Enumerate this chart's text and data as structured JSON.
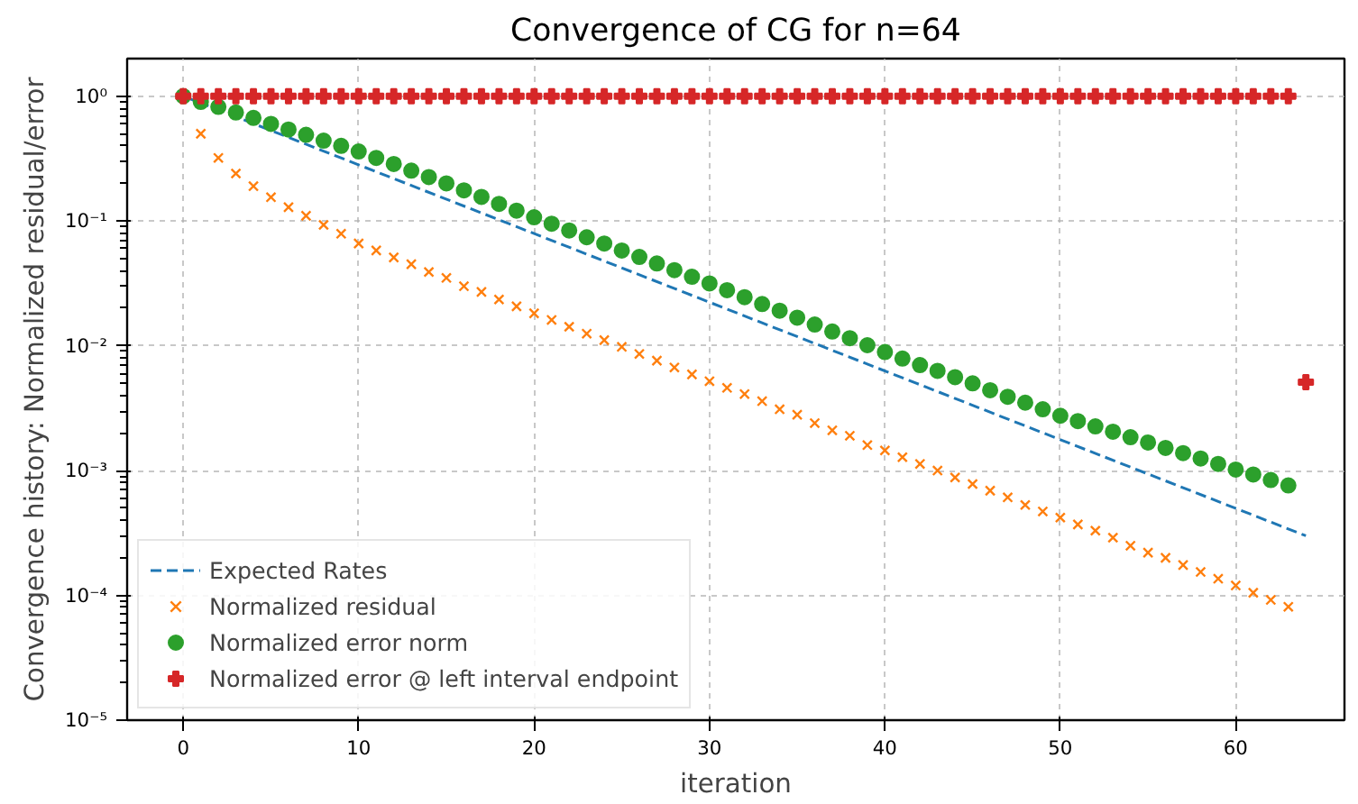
{
  "chart_data": {
    "type": "scatter",
    "title": "Convergence of CG for n=64",
    "xlabel": "iteration",
    "ylabel": "Convergence history: Normalized residual/error",
    "log": "y",
    "grid": true,
    "legend": "bottom left",
    "xlim": [
      -3.2,
      66.2
    ],
    "xticks": [
      0,
      10,
      20,
      30,
      40,
      50,
      60
    ],
    "ylim": [
      1e-05,
      2
    ],
    "yticks": [
      {
        "value": 1e-05,
        "label": "10⁻⁵"
      },
      {
        "value": 0.0001,
        "label": "10⁻⁴"
      },
      {
        "value": 0.001,
        "label": "10⁻³"
      },
      {
        "value": 0.01,
        "label": "10⁻²"
      },
      {
        "value": 0.1,
        "label": "10⁻¹"
      },
      {
        "value": 1,
        "label": "10⁰"
      }
    ],
    "series": [
      {
        "name": "Expected Rates",
        "type": "line",
        "line_style": "dashed",
        "color": "#1f77b4",
        "x": [
          0,
          64
        ],
        "values": [
          1,
          0.0003
        ]
      },
      {
        "name": "Normalized residual",
        "marker": "x",
        "color": "#ff7f0e",
        "x": [
          1,
          2,
          3,
          4,
          5,
          6,
          7,
          8,
          9,
          10,
          11,
          12,
          13,
          14,
          15,
          16,
          17,
          18,
          19,
          20,
          21,
          22,
          23,
          24,
          25,
          26,
          27,
          28,
          29,
          30,
          31,
          32,
          33,
          34,
          35,
          36,
          37,
          38,
          39,
          40,
          41,
          42,
          43,
          44,
          45,
          46,
          47,
          48,
          49,
          50,
          51,
          52,
          53,
          54,
          55,
          56,
          57,
          58,
          59,
          60,
          61,
          62,
          63
        ],
        "values": [
          0.5,
          0.32,
          0.24,
          0.19,
          0.155,
          0.129,
          0.11,
          0.093,
          0.079,
          0.066,
          0.058,
          0.051,
          0.045,
          0.039,
          0.035,
          0.03,
          0.027,
          0.0235,
          0.0207,
          0.0182,
          0.0161,
          0.0142,
          0.0125,
          0.0111,
          0.0098,
          0.0086,
          0.0076,
          0.0067,
          0.0059,
          0.0052,
          0.0046,
          0.0041,
          0.0036,
          0.0031,
          0.0028,
          0.0024,
          0.0021,
          0.0019,
          0.0016,
          0.00145,
          0.00128,
          0.00113,
          0.001,
          0.00088,
          0.00078,
          0.00069,
          0.00061,
          0.00053,
          0.00047,
          0.00042,
          0.00037,
          0.00033,
          0.00029,
          0.00025,
          0.00022,
          0.0002,
          0.000175,
          0.000154,
          0.000136,
          0.00012,
          0.000105,
          9.2e-05,
          8.1e-05
        ]
      },
      {
        "name": "Normalized error norm",
        "marker": "circle",
        "color": "#2ca02c",
        "x": [
          0,
          1,
          2,
          3,
          4,
          5,
          6,
          7,
          8,
          9,
          10,
          11,
          12,
          13,
          14,
          15,
          16,
          17,
          18,
          19,
          20,
          21,
          22,
          23,
          24,
          25,
          26,
          27,
          28,
          29,
          30,
          31,
          32,
          33,
          34,
          35,
          36,
          37,
          38,
          39,
          40,
          41,
          42,
          43,
          44,
          45,
          46,
          47,
          48,
          49,
          50,
          51,
          52,
          53,
          54,
          55,
          56,
          57,
          58,
          59,
          60,
          61,
          62,
          63
        ],
        "values": [
          1,
          0.9,
          0.82,
          0.74,
          0.67,
          0.6,
          0.54,
          0.49,
          0.44,
          0.4,
          0.36,
          0.32,
          0.286,
          0.253,
          0.225,
          0.2,
          0.176,
          0.156,
          0.137,
          0.121,
          0.107,
          0.095,
          0.084,
          0.074,
          0.066,
          0.058,
          0.0515,
          0.0456,
          0.0404,
          0.0357,
          0.0316,
          0.0279,
          0.0245,
          0.0216,
          0.0191,
          0.0168,
          0.0148,
          0.013,
          0.0115,
          0.0101,
          0.0089,
          0.0079,
          0.007,
          0.0063,
          0.0056,
          0.005,
          0.0044,
          0.0039,
          0.0035,
          0.0031,
          0.00275,
          0.00249,
          0.00226,
          0.00205,
          0.00185,
          0.00168,
          0.00152,
          0.00138,
          0.00125,
          0.00113,
          0.00102,
          0.00093,
          0.00084,
          0.00076
        ]
      },
      {
        "name": "Normalized error @ left interval endpoint",
        "marker": "cross",
        "color": "#d62728",
        "x": [
          0,
          1,
          2,
          3,
          4,
          5,
          6,
          7,
          8,
          9,
          10,
          11,
          12,
          13,
          14,
          15,
          16,
          17,
          18,
          19,
          20,
          21,
          22,
          23,
          24,
          25,
          26,
          27,
          28,
          29,
          30,
          31,
          32,
          33,
          34,
          35,
          36,
          37,
          38,
          39,
          40,
          41,
          42,
          43,
          44,
          45,
          46,
          47,
          48,
          49,
          50,
          51,
          52,
          53,
          54,
          55,
          56,
          57,
          58,
          59,
          60,
          61,
          62,
          63,
          64
        ],
        "values": [
          1,
          1,
          1,
          1,
          1,
          1,
          1,
          1,
          1,
          1,
          1,
          1,
          1,
          1,
          1,
          1,
          1,
          1,
          1,
          1,
          1,
          1,
          1,
          1,
          1,
          1,
          1,
          1,
          1,
          1,
          1,
          1,
          1,
          1,
          1,
          1,
          1,
          1,
          1,
          1,
          1,
          1,
          1,
          1,
          1,
          1,
          1,
          1,
          1,
          1,
          1,
          1,
          1,
          1,
          1,
          1,
          1,
          1,
          1,
          1,
          1,
          1,
          1,
          1,
          0.0051
        ]
      }
    ]
  }
}
